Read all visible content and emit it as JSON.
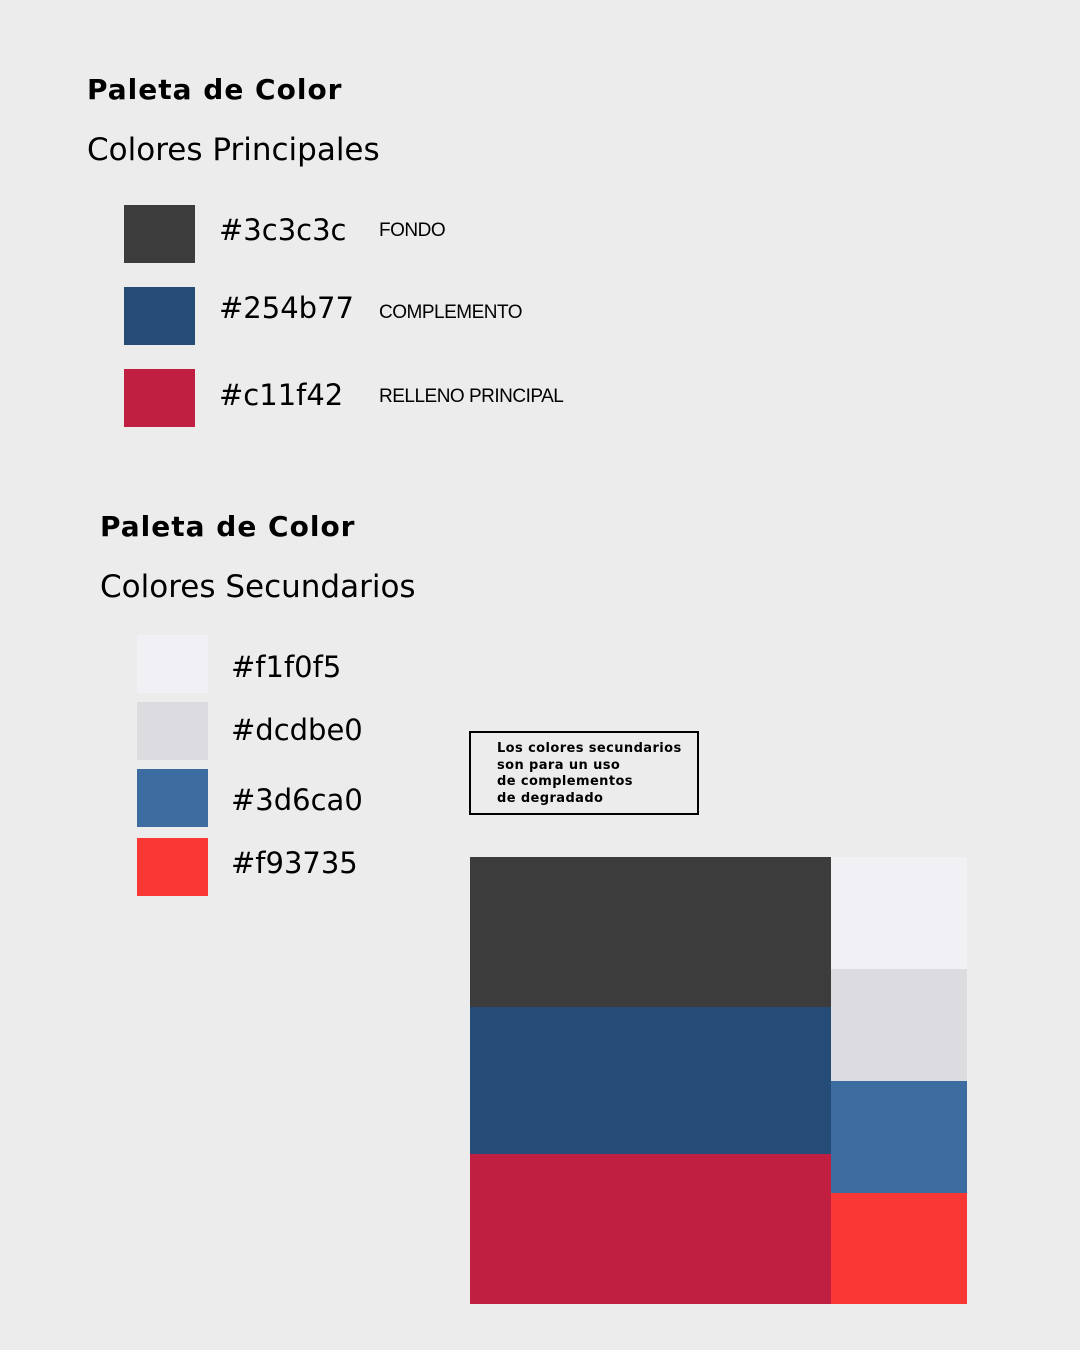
{
  "principal": {
    "title": "Paleta de Color",
    "subtitle": "Colores Principales",
    "items": [
      {
        "hex": "#3c3c3c",
        "role": "FONDO",
        "color": "#3c3c3c"
      },
      {
        "hex": "#254b77",
        "role": "COMPLEMENTO",
        "color": "#254b77"
      },
      {
        "hex": "#c11f42",
        "role": "RELLENO PRINCIPAL",
        "color": "#c11f42"
      }
    ]
  },
  "secondary": {
    "title": "Paleta de Color",
    "subtitle": "Colores Secundarios",
    "items": [
      {
        "hex": "#f1f0f5",
        "color": "#f1f0f5"
      },
      {
        "hex": "#dcdbe0",
        "color": "#dcdbe0"
      },
      {
        "hex": "#3d6ca0",
        "color": "#3d6ca0"
      },
      {
        "hex": "#f93735",
        "color": "#f93735"
      }
    ]
  },
  "note": {
    "lines": [
      "Los colores secundarios",
      "son para un uso",
      "de complementos",
      "de degradado"
    ]
  },
  "composition": {
    "main_colors": [
      "#3c3c3c",
      "#254b77",
      "#c11f42"
    ],
    "side_colors": [
      "#f1f0f5",
      "#dcdbe0",
      "#3d6ca0",
      "#f93735"
    ]
  }
}
